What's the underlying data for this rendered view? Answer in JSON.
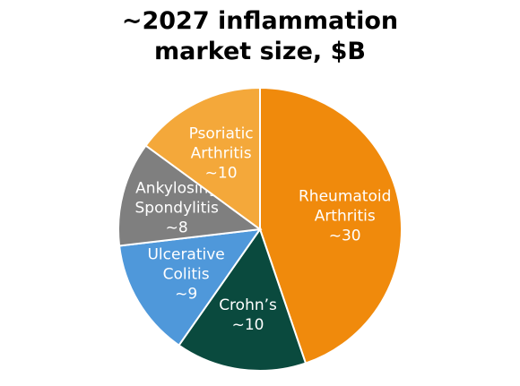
{
  "chart_data": {
    "type": "pie",
    "title_lines": [
      "~2027 inflammation",
      "market size, $B"
    ],
    "slices": [
      {
        "name": "Rheumatoid Arthritis",
        "label_lines": [
          "Rheumatoid",
          "Arthritis",
          "~30"
        ],
        "value": 30,
        "color": "#F08A0C"
      },
      {
        "name": "Crohn's",
        "label_lines": [
          "Crohn’s",
          "~10"
        ],
        "value": 10,
        "color": "#0A4A3E"
      },
      {
        "name": "Ulcerative Colitis",
        "label_lines": [
          "Ulcerative",
          "Colitis",
          "~9"
        ],
        "value": 9,
        "color": "#4F98DA"
      },
      {
        "name": "Ankylosing Spondylitis",
        "label_lines": [
          "Ankylosing",
          "Spondylitis",
          "~8"
        ],
        "value": 8,
        "color": "#7F7F7F"
      },
      {
        "name": "Psoriatic Arthritis",
        "label_lines": [
          "Psoriatic",
          "Arthritis",
          "~10"
        ],
        "value": 10,
        "color": "#F4A83A"
      }
    ],
    "start_angle": "12 o'clock",
    "direction": "clockwise",
    "units": "$B"
  }
}
